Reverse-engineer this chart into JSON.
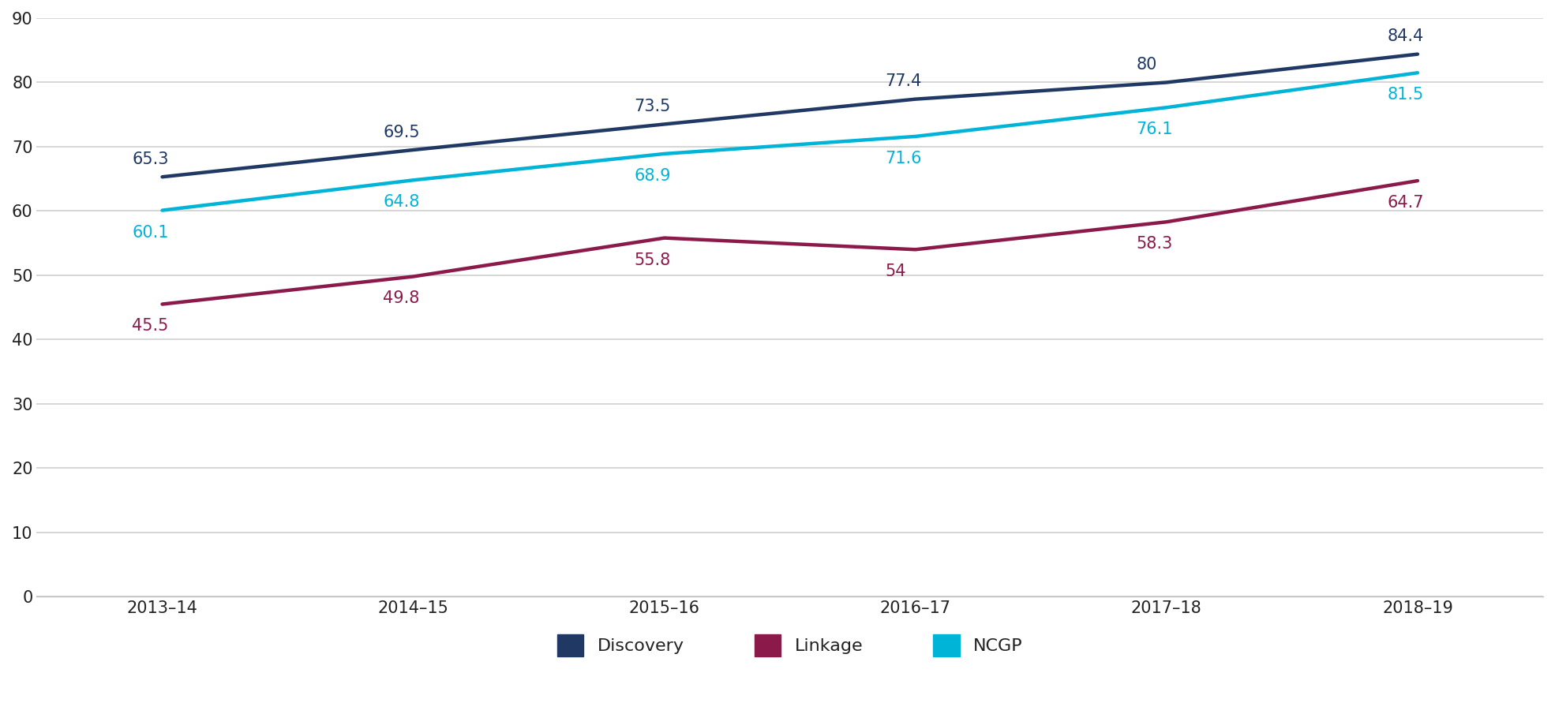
{
  "x_labels": [
    "2013–14",
    "2014–15",
    "2015–16",
    "2016–17",
    "2017–18",
    "2018–19"
  ],
  "x_positions": [
    0,
    1,
    2,
    3,
    4,
    5
  ],
  "series": {
    "Discovery": {
      "values": [
        65.3,
        69.5,
        73.5,
        77.4,
        80.0,
        84.4
      ],
      "color": "#1f3864",
      "linewidth": 3.2
    },
    "Linkage": {
      "values": [
        45.5,
        49.8,
        55.8,
        54.0,
        58.3,
        64.7
      ],
      "color": "#8b1a4a",
      "linewidth": 3.2
    },
    "NCGP": {
      "values": [
        60.1,
        64.8,
        68.9,
        71.6,
        76.1,
        81.5
      ],
      "color": "#00b4d8",
      "linewidth": 3.2
    }
  },
  "ylim": [
    0,
    90
  ],
  "yticks": [
    0,
    10,
    20,
    30,
    40,
    50,
    60,
    70,
    80,
    90
  ],
  "background_color": "#ffffff",
  "grid_color": "#d0d0d0",
  "annotation_fontsize": 15,
  "tick_fontsize": 15,
  "legend_fontsize": 16
}
